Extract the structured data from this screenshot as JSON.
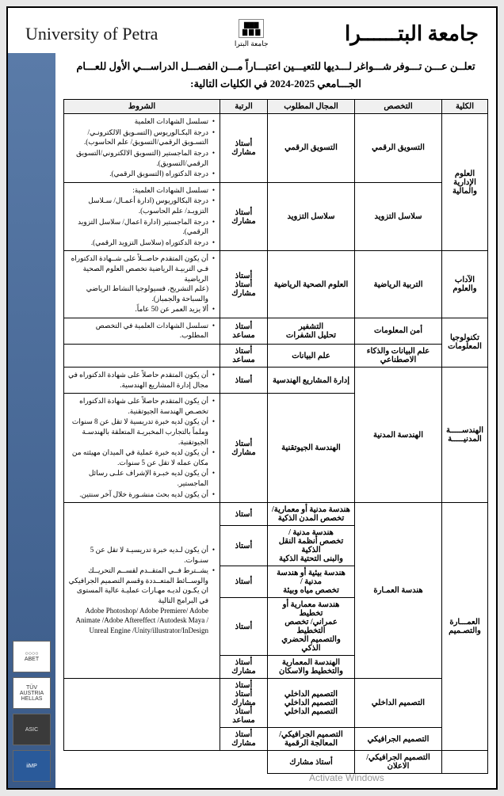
{
  "header": {
    "en": "University of Petra",
    "ar": "جامعة البتــــــرا",
    "logoSub": "جامعة البترا"
  },
  "announce": "تعلــن عـــن تـــوفر شـــواغر لـــديها للتعيـــين اعتبـــاراً مـــن الفصـــل الدراســـي الأول للعـــام الجـــامعي 2025-2024 في الكليات التالية:",
  "cols": {
    "faculty": "الكلية",
    "spec": "التخصص",
    "field": "المجال المطلوب",
    "rank": "الرتبة",
    "cond": "الشروط"
  },
  "rows": [
    {
      "fac": "العلوم الإدارية والمالية",
      "facSpan": 2,
      "spec": "التسويق الرقمي",
      "field": "التسويق الرقمي",
      "rank": "أستاذ مشارك",
      "cond": [
        "تسلسل الشهادات العلمية",
        "درجة البكـالوريوس (التسـويق الالكترونـي/التسـويق الرقمي/التسويق/ علم الحاسوب).",
        "درجة الماجستير (التسويق الالكتروني/التسويق الرقمي/التسويق).",
        "درجة الدكتوراه (التسويق الرقمي)."
      ]
    },
    {
      "spec": "سلاسل التزويد",
      "field": "سلاسل التزويد",
      "rank": "أستاذ مشارك",
      "cond": [
        "تسلسل الشهادات العلمية:",
        "درجة البكالوريوس (ادارة أعمـال/ سـلاسل التزويـد/ علم الحاسوب).",
        "درجة الماجستير (ادارة اعمال/ سلاسل التزويد الرقمي).",
        "درجة الدكتوراه (سلاسل التزويد الرقمي)."
      ]
    },
    {
      "fac": "الآداب والعلوم",
      "facSpan": 1,
      "spec": "التربية الرياضية",
      "field": "العلوم الصحية الرياضية",
      "rank": "أستاذ\nأستاذ مشارك",
      "cond": [
        "أن يكون المتقدم حاصــلاً على شــهادة الدكتوراه فـي التربيـة الرياضية تخصص العلوم الصحية الرياضية\n(علم التشريح، فسيولوجيا النشاط الرياضي والسباحة والجمباز).",
        "ألا يزيد العمر عن 50 عاماً."
      ]
    },
    {
      "fac": "تكنولوجيا المعلومات",
      "facSpan": 2,
      "spec": "أمن المعلومات",
      "field": "التشفير\nتحليل الشفرات",
      "rank": "أستاذ مساعد",
      "cond": [
        "تسلسل الشهادات العلمية في التخصص المطلوب."
      ]
    },
    {
      "spec": "علم البيانات والذكاء الاصطناعي",
      "field": "علم البيانات",
      "rank": "أستاذ مساعد",
      "cond": []
    },
    {
      "fac": "الهندســـــة المدنيـــــة",
      "facSpan": 2,
      "spec": "الهندسة المدنية",
      "specSpan": 2,
      "field": "إدارة المشاريع الهندسية",
      "rank": "أستاذ",
      "cond": [
        "أن يكون المتقدم حاصلاً على شهادة الدكتوراه في مجال إدارة المشاريع الهندسية."
      ]
    },
    {
      "field": "الهندسة الجيوتقنية",
      "rank": "أستاذ مشارك",
      "cond": [
        "أن يكون المتقدم حاصلاً على شهادة الدكتوراه تخصـص الهندسة الجيوتقنية.",
        "أن يكون لديه خبرة تدريسية لا تقل عن 8 سنوات وملماً بالتجارب المخبريـة المتعلقة بالهندسـة الجيوتقنية.",
        "أن يكون لديه خبرة عملية في الميدان مهيئته من مكان عمله لا تقل عن 5 سنوات.",
        "أن يكون لديه خبـرة الإشراف علـى رسائل الماجستير.",
        "أن يكون لديه بحث منشـورة خلال آخر سنتين."
      ]
    },
    {
      "fac": "العمـــارة والتصـميم",
      "facSpan": 7,
      "spec": "هندسة العمـارة",
      "specSpan": 5,
      "field": "هندسة مدنية أو معمارية/\nتخصص المدن الذكية",
      "rank": "أستاذ",
      "cond": [
        "أن يكون لـديه خبرة تدريسيـة لا تقل عن 5 سنـوات.",
        "يشــترط فــي المتقــدم لقســم التحريــك والوســائط المتعــددة وقسم التصميم الجرافيكي ان يكـون لديـه مهـارات عمليـة عالية المستوى في البرامج التالية\nAdobe Photoshop/ Adobe Premiere/ Adobe Animate /Adobe Aftereffect /Autodesk Maya / Unreal Engine /Unity/illustrator/InDesign"
      ],
      "condSpan": 5
    },
    {
      "field": "هندسة مدنية /\nتخصص أنظمة النقل الذكية\nوالبنى التحتية الذكية",
      "rank": "أستاذ"
    },
    {
      "field": "هندسة بيئية أو هندسة مدنية /\nتخصص مياه وبيئة",
      "rank": "أستاذ"
    },
    {
      "field": "هندسة معمارية أو تخطيط\nعمراني/ تخصص التخطيط\nوالتصميم الحضري الذكي",
      "rank": "أستاذ"
    },
    {
      "field": "الهندسة المعمارية\nوالتخطيط والاسكان",
      "rank": "أستاذ مشارك"
    },
    {
      "spec": "التصميم الداخلي",
      "field": "التصميم الداخلي\nالتصميم الداخلي\nالتصميم الداخلي",
      "rank": "أستاذ\nأستاذ مشارك\nأستاذ مساعد",
      "cond": [],
      "condSpan": 2
    },
    {
      "spec": "التصميم الجرافيكي",
      "field": "التصميم الجرافيكي/\nالمعالجة الرقمية",
      "rank": "أستاذ مشارك"
    },
    {
      "extra": true,
      "field": "التصميم الجرافيكي/الاعلان",
      "rank": "أستاذ مشارك"
    }
  ],
  "badges": [
    {
      "t": "○○○○\nABET",
      "c": "light"
    },
    {
      "t": "TÜV\nAUSTRIA\nHELLAS",
      "c": "light"
    },
    {
      "t": "ASIC",
      "c": "dark"
    },
    {
      "t": "iiMP",
      "c": "blue"
    }
  ],
  "watermark": "Activate Windows"
}
